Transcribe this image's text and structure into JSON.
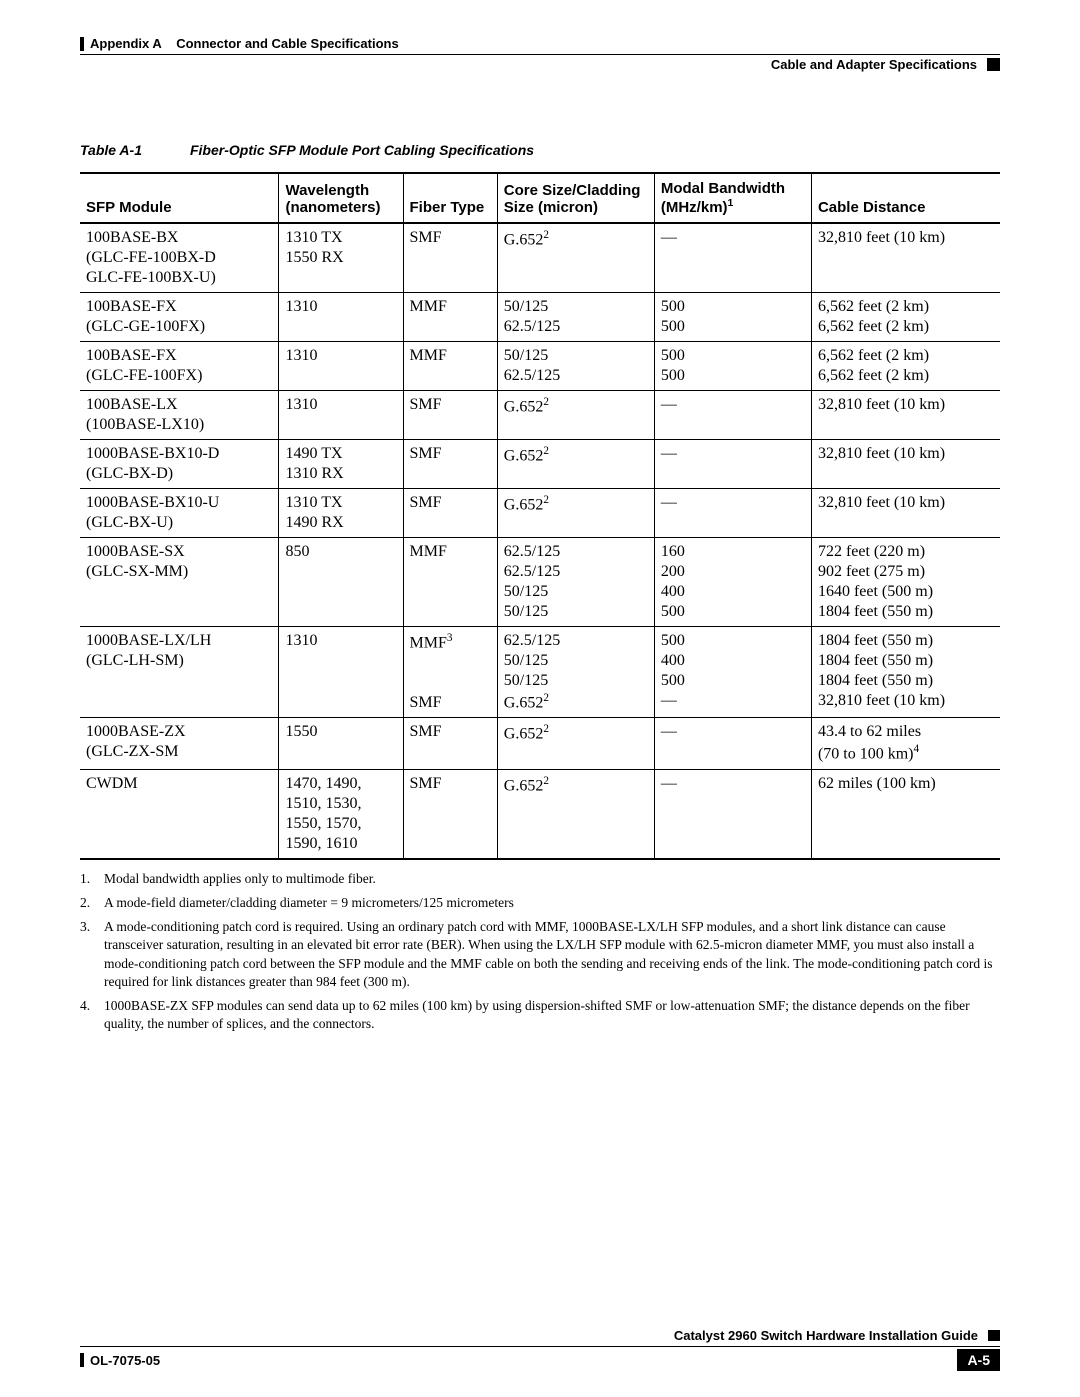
{
  "header": {
    "appendix": "Appendix A",
    "appendix_title": "Connector and Cable Specifications",
    "section": "Cable and Adapter Specifications"
  },
  "table": {
    "caption_num": "Table A-1",
    "caption_title": "Fiber-Optic SFP Module Port Cabling Specifications",
    "columns": {
      "c0": "SFP Module",
      "c1a": "Wavelength",
      "c1b": "(nanometers)",
      "c2": "Fiber Type",
      "c3a": "Core Size/Cladding",
      "c3b": "Size (micron)",
      "c4a": "Modal Bandwidth",
      "c4b": "(MHz/km)",
      "c4sup": "1",
      "c5": "Cable Distance"
    },
    "rows": [
      {
        "sfp_lines": [
          "100BASE-BX",
          "(GLC-FE-100BX-D",
          "GLC-FE-100BX-U)"
        ],
        "wave_lines": [
          "1310 TX",
          "1550 RX"
        ],
        "fiber_lines": [
          "SMF"
        ],
        "core_lines_sup": [
          {
            "t": "G.652",
            "s": "2"
          }
        ],
        "modal_lines": [
          "—"
        ],
        "dist_lines": [
          "32,810 feet (10 km)"
        ]
      },
      {
        "sfp_lines": [
          "100BASE-FX",
          "(GLC-GE-100FX)"
        ],
        "wave_lines": [
          "1310"
        ],
        "fiber_lines": [
          "MMF"
        ],
        "core_lines": [
          "50/125",
          "62.5/125"
        ],
        "modal_lines": [
          "500",
          "500"
        ],
        "dist_lines": [
          "6,562 feet (2 km)",
          "6,562 feet (2 km)"
        ]
      },
      {
        "sfp_lines": [
          "100BASE-FX",
          "(GLC-FE-100FX)"
        ],
        "wave_lines": [
          "1310"
        ],
        "fiber_lines": [
          "MMF"
        ],
        "core_lines": [
          "50/125",
          "62.5/125"
        ],
        "modal_lines": [
          "500",
          "500"
        ],
        "dist_lines": [
          "6,562 feet (2 km)",
          "6,562 feet (2 km)"
        ]
      },
      {
        "sfp_lines": [
          "100BASE-LX",
          "(100BASE-LX10)"
        ],
        "wave_lines": [
          "1310"
        ],
        "fiber_lines": [
          "SMF"
        ],
        "core_lines_sup": [
          {
            "t": "G.652",
            "s": "2"
          }
        ],
        "modal_lines": [
          "—"
        ],
        "dist_lines": [
          "32,810 feet (10 km)"
        ]
      },
      {
        "sfp_lines": [
          "1000BASE-BX10-D",
          "(GLC-BX-D)"
        ],
        "wave_lines": [
          "1490 TX",
          "1310 RX"
        ],
        "fiber_lines": [
          "SMF"
        ],
        "core_lines_sup": [
          {
            "t": "G.652",
            "s": "2"
          }
        ],
        "modal_lines": [
          "—"
        ],
        "dist_lines": [
          "32,810 feet (10 km)"
        ]
      },
      {
        "sfp_lines": [
          "1000BASE-BX10-U",
          "(GLC-BX-U)"
        ],
        "wave_lines": [
          "1310 TX",
          "1490 RX"
        ],
        "fiber_lines": [
          "SMF"
        ],
        "core_lines_sup": [
          {
            "t": "G.652",
            "s": "2"
          }
        ],
        "modal_lines": [
          "—"
        ],
        "dist_lines": [
          "32,810 feet (10 km)"
        ]
      },
      {
        "sfp_lines": [
          "1000BASE-SX",
          "(GLC-SX-MM)"
        ],
        "wave_lines": [
          "850"
        ],
        "fiber_lines": [
          "MMF"
        ],
        "core_lines": [
          "62.5/125",
          "62.5/125",
          "50/125",
          "50/125"
        ],
        "modal_lines": [
          "160",
          "200",
          "400",
          "500"
        ],
        "dist_lines": [
          "722 feet (220 m)",
          "902 feet (275 m)",
          "1640 feet (500 m)",
          "1804 feet (550 m)"
        ]
      },
      {
        "sfp_lines": [
          "1000BASE-LX/LH",
          "(GLC-LH-SM)"
        ],
        "wave_lines": [
          "1310"
        ],
        "fiber_lines_sup": [
          {
            "t": "MMF",
            "s": "3"
          },
          {
            "t": "",
            "s": ""
          },
          {
            "t": "",
            "s": ""
          },
          {
            "t": "SMF",
            "s": ""
          }
        ],
        "core_lines_mix": [
          "62.5/125",
          "50/125",
          "50/125",
          {
            "t": "G.652",
            "s": "2"
          }
        ],
        "modal_lines": [
          "500",
          "400",
          "500",
          "—"
        ],
        "dist_lines": [
          "1804 feet (550 m)",
          "1804 feet (550 m)",
          "1804 feet (550 m)",
          "32,810 feet (10 km)"
        ]
      },
      {
        "sfp_lines": [
          "1000BASE-ZX",
          "(GLC-ZX-SM"
        ],
        "wave_lines": [
          "1550"
        ],
        "fiber_lines": [
          "SMF"
        ],
        "core_lines_sup": [
          {
            "t": "G.652",
            "s": "2"
          }
        ],
        "modal_lines": [
          "—"
        ],
        "dist_lines_sup": [
          {
            "t": "43.4 to 62 miles",
            "s": ""
          },
          {
            "t": "(70 to 100 km)",
            "s": "4"
          }
        ]
      },
      {
        "sfp_lines": [
          "CWDM"
        ],
        "wave_lines": [
          "1470, 1490,",
          "1510, 1530,",
          "1550, 1570,",
          "1590, 1610"
        ],
        "fiber_lines": [
          "SMF"
        ],
        "core_lines_sup": [
          {
            "t": "G.652",
            "s": "2"
          }
        ],
        "modal_lines": [
          "—"
        ],
        "dist_lines": [
          "62 miles (100 km)"
        ]
      }
    ]
  },
  "footnotes": [
    {
      "n": "1.",
      "t": "Modal bandwidth applies only to multimode fiber."
    },
    {
      "n": "2.",
      "t": "A mode-field diameter/cladding diameter = 9 micrometers/125 micrometers"
    },
    {
      "n": "3.",
      "t": "A mode-conditioning patch cord is required. Using an ordinary patch cord with MMF, 1000BASE-LX/LH SFP modules, and a short link distance can cause transceiver saturation, resulting in an elevated bit error rate (BER). When using the LX/LH SFP module with 62.5-micron diameter MMF, you must also install a mode-conditioning patch cord between the SFP module and the MMF cable on both the sending and receiving ends of the link. The mode-conditioning patch cord is required for link distances greater than 984 feet (300 m)."
    },
    {
      "n": "4.",
      "t": "1000BASE-ZX SFP modules can send data up to 62 miles (100 km) by using dispersion-shifted SMF or low-attenuation SMF; the distance depends on the fiber quality, the number of splices, and the connectors."
    }
  ],
  "footer": {
    "guide": "Catalyst 2960 Switch Hardware Installation Guide",
    "doc_id": "OL-7075-05",
    "page_num": "A-5"
  }
}
